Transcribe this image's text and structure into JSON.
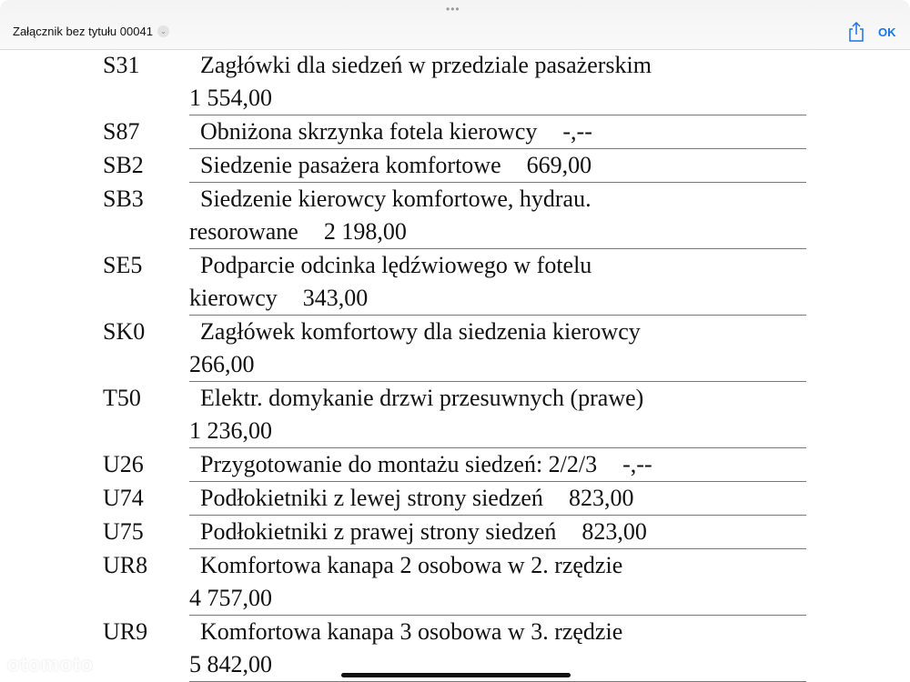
{
  "header": {
    "title": "Załącznik bez tytułu 00041",
    "ok_label": "OK",
    "icons": {
      "more": "more-dots-icon",
      "chevron": "chevron-down-icon",
      "share": "share-icon"
    }
  },
  "watermark": "otomoto",
  "rows": [
    {
      "code": "S31",
      "lines": [
        {
          "text": "Zagłówki dla siedzeń w przedziale pasażerskim",
          "price": ""
        },
        {
          "text": "",
          "price": "1 554,00"
        }
      ]
    },
    {
      "code": "S87",
      "lines": [
        {
          "text": "Obniżona skrzynka fotela kierowcy",
          "price": "-,--"
        }
      ]
    },
    {
      "code": "SB2",
      "lines": [
        {
          "text": "Siedzenie pasażera komfortowe",
          "price": "669,00"
        }
      ]
    },
    {
      "code": "SB3",
      "lines": [
        {
          "text": "Siedzenie kierowcy komfortowe, hydrau.",
          "price": ""
        },
        {
          "text": "resorowane",
          "price": "2 198,00"
        }
      ]
    },
    {
      "code": "SE5",
      "lines": [
        {
          "text": "Podparcie odcinka lędźwiowego w fotelu",
          "price": ""
        },
        {
          "text": "kierowcy",
          "price": "343,00"
        }
      ]
    },
    {
      "code": "SK0",
      "lines": [
        {
          "text": "Zagłówek komfortowy dla siedzenia kierowcy",
          "price": ""
        },
        {
          "text": "",
          "price": "266,00"
        }
      ]
    },
    {
      "code": "T50",
      "lines": [
        {
          "text": "Elektr. domykanie drzwi przesuwnych (prawe)",
          "price": ""
        },
        {
          "text": "",
          "price": "1 236,00"
        }
      ]
    },
    {
      "code": "U26",
      "lines": [
        {
          "text": "Przygotowanie do montażu siedzeń: 2/2/3",
          "price": "-,--"
        }
      ]
    },
    {
      "code": "U74",
      "lines": [
        {
          "text": "Podłokietniki z lewej strony siedzeń",
          "price": "823,00"
        }
      ]
    },
    {
      "code": "U75",
      "lines": [
        {
          "text": "Podłokietniki z prawej strony siedzeń",
          "price": "823,00"
        }
      ]
    },
    {
      "code": "UR8",
      "lines": [
        {
          "text": "Komfortowa kanapa 2 osobowa w 2. rzędzie",
          "price": ""
        },
        {
          "text": "",
          "price": "4 757,00"
        }
      ]
    },
    {
      "code": "UR9",
      "lines": [
        {
          "text": "Komfortowa kanapa 3 osobowa w 3. rzędzie",
          "price": ""
        },
        {
          "text": "",
          "price": "5 842,00"
        }
      ]
    }
  ]
}
